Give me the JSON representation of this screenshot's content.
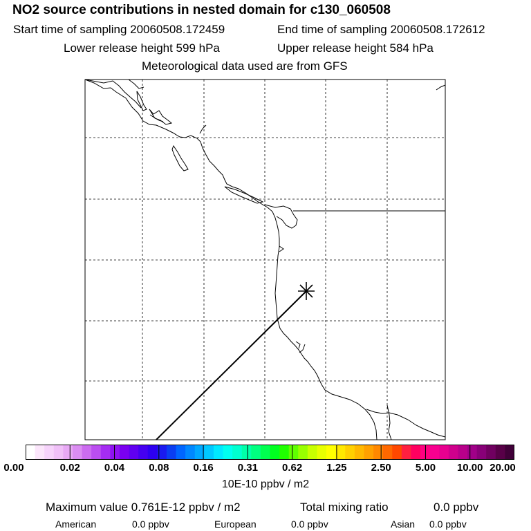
{
  "header": {
    "title": "NO2 source contributions in nested domain for c130_060508",
    "start_sampling": "Start time of sampling 20060508.172459",
    "end_sampling": "End time of sampling 20060508.172612",
    "lower_release": "Lower release height  599 hPa",
    "upper_release": "Upper release height  584 hPa",
    "met_data": "Meteorological data used are from GFS"
  },
  "map": {
    "release_marker": "asterisk",
    "coast_color": "#000000",
    "grid_style": "dashed"
  },
  "colorbar": {
    "units": "10E-10 ppbv / m2",
    "tick_labels": [
      "0.00",
      "0.02",
      "0.04",
      "0.08",
      "0.16",
      "0.31",
      "0.62",
      "1.25",
      "2.50",
      "5.00",
      "10.00",
      "20.00"
    ],
    "colors": [
      "#ffffff",
      "#fbe6fb",
      "#f6d3fb",
      "#f0c0f8",
      "#e8a9f5",
      "#db8df2",
      "#cc6cf0",
      "#bb4ef0",
      "#a52df2",
      "#8f12f2",
      "#7a00f0",
      "#6000f0",
      "#4500f0",
      "#2d00f0",
      "#1a1af0",
      "#0a3ef2",
      "#0066ff",
      "#0088ff",
      "#00a8ff",
      "#00c8ff",
      "#00e8ff",
      "#00fff0",
      "#00ffd0",
      "#00ffa8",
      "#00ff80",
      "#00ff50",
      "#00ff20",
      "#20ff00",
      "#60ff00",
      "#98ff00",
      "#c8ff00",
      "#e8ff00",
      "#ffff00",
      "#ffe800",
      "#ffd000",
      "#ffb800",
      "#ffa000",
      "#ff8800",
      "#ff6800",
      "#ff4800",
      "#ff2040",
      "#ff0060",
      "#ff0080",
      "#f80090",
      "#e8008f",
      "#d0008c",
      "#b8008a",
      "#a00088",
      "#880078",
      "#700060",
      "#580048",
      "#400038"
    ]
  },
  "footer": {
    "max_value": "Maximum value  0.761E-12 ppbv / m2",
    "total_mixing": "Total mixing ratio",
    "total_value": "0.0 ppbv",
    "american_label": "American",
    "american_value": "0.0 ppbv",
    "european_label": "European",
    "european_value": "0.0 ppbv",
    "asian_label": "Asian",
    "asian_value": "0.0 ppbv"
  }
}
